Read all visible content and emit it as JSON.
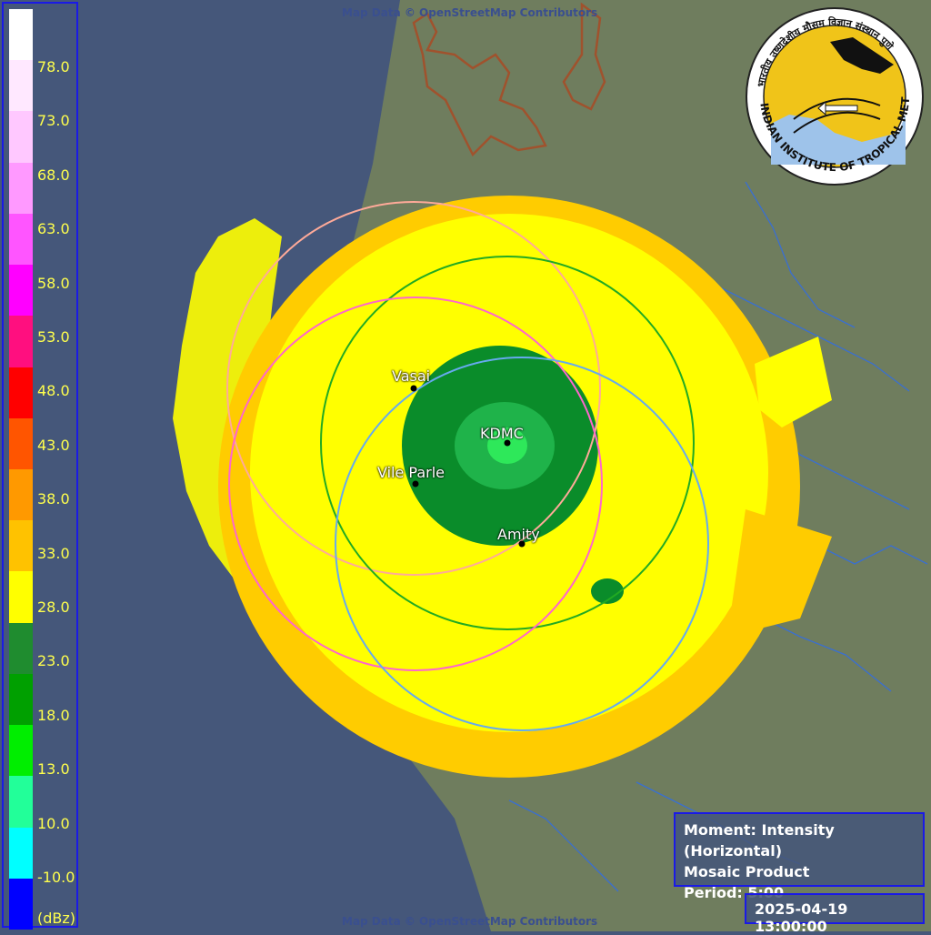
{
  "map": {
    "credit": "Map Data © OpenStreetMap Contributors",
    "colors": {
      "sea": "#45577a",
      "land": "#6b7b5c",
      "echo_yellow": "#ffff00",
      "echo_orange": "#ffcc00",
      "echo_green": "#0a8c2a"
    },
    "sites": [
      {
        "name": "Vasai",
        "label": "Vasai"
      },
      {
        "name": "KDMC",
        "label": "KDMC"
      },
      {
        "name": "Vile Parle",
        "label": "Vile Parle"
      },
      {
        "name": "Amity",
        "label": "Amity"
      }
    ]
  },
  "legend": {
    "unit": "(dBz)",
    "ticks": [
      "78.0",
      "73.0",
      "68.0",
      "63.0",
      "58.0",
      "53.0",
      "48.0",
      "43.0",
      "38.0",
      "33.0",
      "28.0",
      "23.0",
      "18.0",
      "13.0",
      "10.0",
      "-10.0"
    ],
    "colors": [
      "#ffffff",
      "#ffe8ff",
      "#ffc8ff",
      "#ff99ff",
      "#ff55ff",
      "#ff00ff",
      "#ff0f7f",
      "#ff0000",
      "#ff5500",
      "#ff9900",
      "#ffc200",
      "#ffff00",
      "#1f8c2f",
      "#00a000",
      "#00ee00",
      "#22ff99",
      "#00ffff",
      "#0000ff"
    ]
  },
  "info": {
    "moment": "Moment: Intensity (Horizontal)",
    "product": "Mosaic Product",
    "period": "Period: 5:00"
  },
  "timestamp": "2025-04-19 13:00:00",
  "logo": {
    "text": "INDIAN INSTITUTE OF TROPICAL METEOROLOGY PUNE",
    "hindi_text": "भारतीय उष्णदेशीय मौसम विज्ञान संस्थान पुणे"
  }
}
